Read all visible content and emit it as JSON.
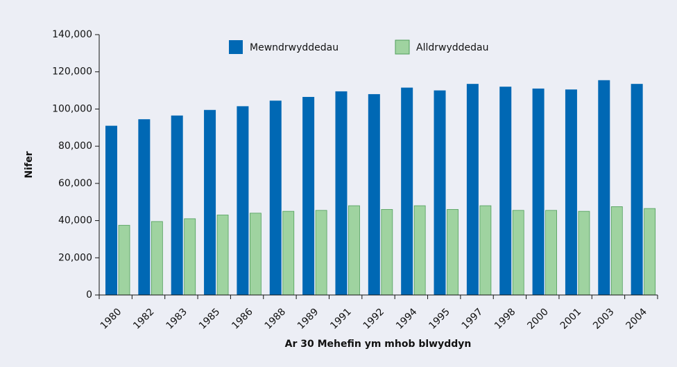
{
  "chart_data": {
    "type": "bar",
    "categories": [
      "1980",
      "1982",
      "1983",
      "1985",
      "1986",
      "1988",
      "1989",
      "1991",
      "1992",
      "1994",
      "1995",
      "1997",
      "1998",
      "2000",
      "2001",
      "2003",
      "2004"
    ],
    "series": [
      {
        "name": "Mewndrwyddedau",
        "color": "#0068b4",
        "values": [
          91000,
          94500,
          96500,
          99500,
          101500,
          104500,
          106500,
          109500,
          108000,
          111500,
          110000,
          113500,
          112000,
          111000,
          110500,
          115500,
          113500
        ]
      },
      {
        "name": "Alldrwyddedau",
        "color": "#9fd3a0",
        "values": [
          37500,
          39500,
          41000,
          43000,
          44000,
          45000,
          45500,
          48000,
          46000,
          48000,
          46000,
          48000,
          45500,
          45500,
          45000,
          47500,
          46500
        ]
      }
    ],
    "ylim": [
      0,
      140000
    ],
    "yticks": [
      0,
      {
        "value": 20000,
        "label": "20,000"
      },
      {
        "value": 40000,
        "label": "40,000"
      },
      {
        "value": 60000,
        "label": "60,000"
      },
      {
        "value": 80000,
        "label": "80,000"
      },
      {
        "value": 100000,
        "label": "100,000"
      },
      {
        "value": 120000,
        "label": "120,000"
      },
      {
        "value": 140000,
        "label": "140,000"
      }
    ],
    "x_label": "Ar 30 Mehefin ym mhob blwyddyn",
    "y_label": "Nifer",
    "legend": "top"
  }
}
